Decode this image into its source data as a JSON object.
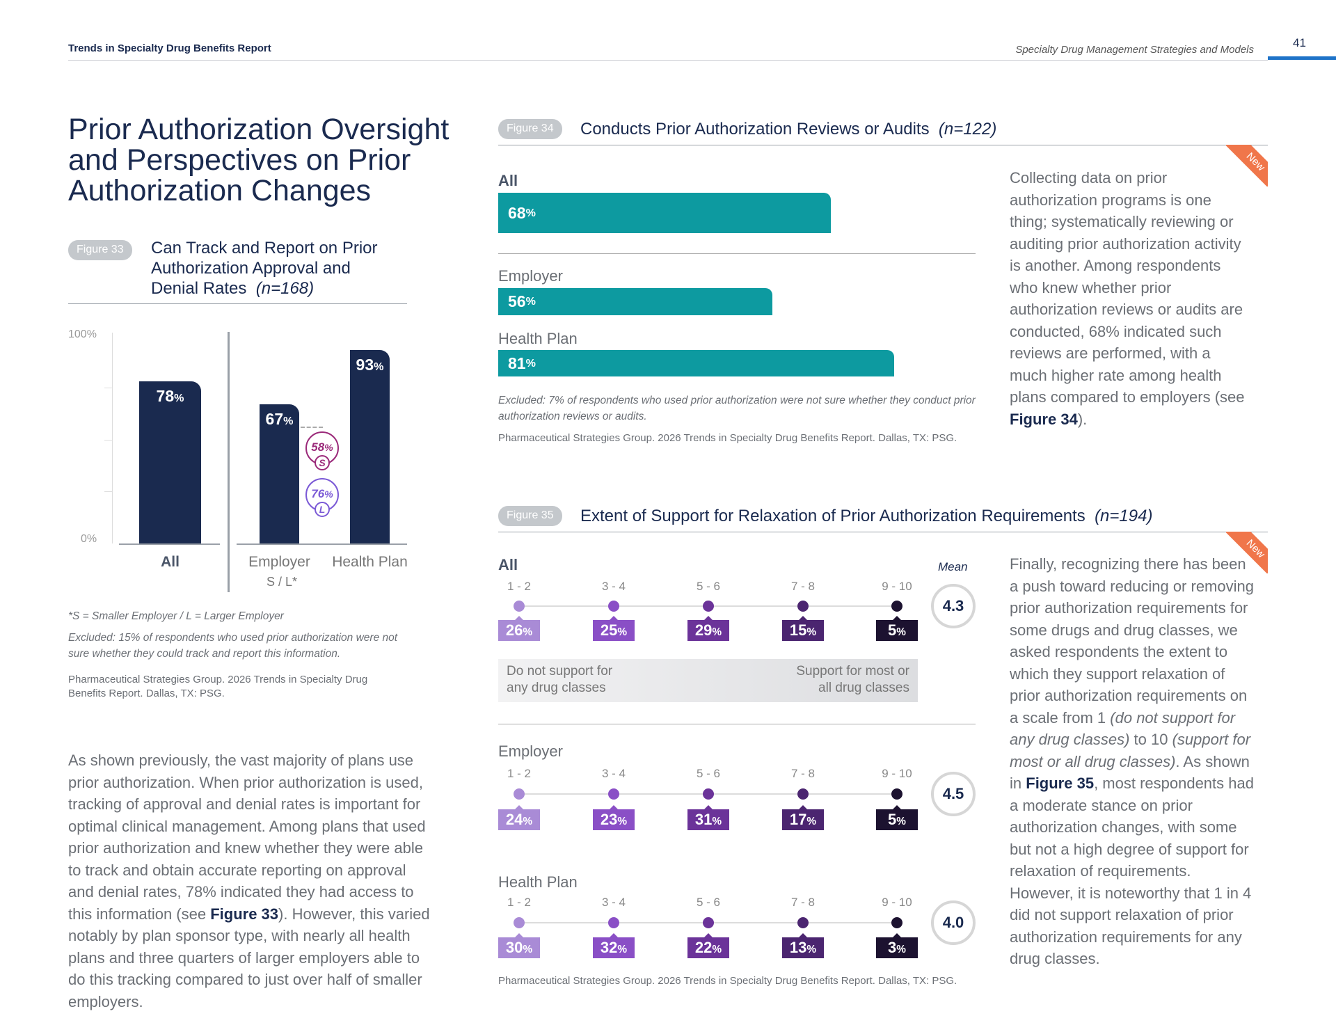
{
  "header": {
    "left": "Trends in Specialty Drug Benefits Report",
    "right": "Specialty Drug Management Strategies and Models",
    "page": "41"
  },
  "title": "Prior Authorization Oversight and Perspectives on Prior Authorization Changes",
  "fig33": {
    "badge": "Figure 33",
    "title": "Can Track and Report on Prior Authorization Approval and Denial Rates",
    "n": "(n=168)",
    "chart_data": {
      "type": "bar",
      "categories": [
        "All",
        "Employer",
        "Health Plan"
      ],
      "values": [
        78,
        67,
        93
      ],
      "ylim": [
        0,
        100
      ],
      "ytick_labels": [
        "100%",
        "0%"
      ],
      "employer_breakdown": [
        {
          "label": "S",
          "value": 58,
          "color": "#9b2a7a"
        },
        {
          "label": "L",
          "value": 76,
          "color": "#7b5ad6"
        }
      ]
    },
    "employer_sub": "S / L*",
    "footnote": "*S = Smaller Employer / L = Larger Employer",
    "excluded": "Excluded: 15% of respondents who used prior authorization were not sure whether they could track and report this information.",
    "source": "Pharmaceutical Strategies Group. 2026 Trends in Specialty Drug Benefits Report. Dallas, TX: PSG."
  },
  "body1": [
    "As shown previously, the vast majority of plans use prior authorization. When prior authorization is used, tracking of approval and denial rates is important for optimal clinical management. Among plans that used prior authorization and knew whether they were able to track and obtain accurate reporting on approval and denial rates, 78% indicated they had access to this information (see ",
    "Figure 33",
    "). However, this varied notably by plan sponsor type, with nearly all health plans and three quarters of larger employers able to do this tracking compared to just over half of smaller employers."
  ],
  "fig34": {
    "badge": "Figure 34",
    "title": "Conducts Prior Authorization Reviews or Audits",
    "n": "(n=122)",
    "new": "New",
    "chart_data": {
      "type": "bar",
      "orientation": "horizontal",
      "categories": [
        "All",
        "Employer",
        "Health Plan"
      ],
      "values": [
        68,
        56,
        81
      ],
      "xlim": [
        0,
        100
      ]
    },
    "excluded": "Excluded: 7% of respondents who used prior authorization were not sure whether they conduct prior authorization reviews or audits.",
    "source": "Pharmaceutical Strategies Group. 2026 Trends in Specialty Drug Benefits Report. Dallas, TX: PSG."
  },
  "body2": [
    "Collecting data on prior authorization programs is one thing; systematically reviewing or auditing prior authorization activity is another. Among respondents who knew whether prior authorization reviews or audits are conducted, 68% indicated such reviews are performed, with a much higher rate among health plans compared to employers (see ",
    "Figure 34",
    "). "
  ],
  "fig35": {
    "badge": "Figure 35",
    "title": "Extent of Support for Relaxation of Prior Authorization Requirements",
    "n": "(n=194)",
    "new": "New",
    "mean_label": "Mean",
    "scale_low": "Do not support for any drug classes",
    "scale_high": "Support for most or all drug classes",
    "chart_data": {
      "type": "bar",
      "categories": [
        "1 - 2",
        "3 - 4",
        "5 - 6",
        "7 - 8",
        "9 - 10"
      ],
      "colors": [
        "#a98bd6",
        "#8a4fc6",
        "#6b3399",
        "#4b2570",
        "#1c1230"
      ],
      "series": [
        {
          "name": "All",
          "values": [
            26,
            25,
            29,
            15,
            5
          ],
          "mean": "4.3"
        },
        {
          "name": "Employer",
          "values": [
            24,
            23,
            31,
            17,
            5
          ],
          "mean": "4.5"
        },
        {
          "name": "Health Plan",
          "values": [
            30,
            32,
            22,
            13,
            3
          ],
          "mean": "4.0"
        }
      ]
    },
    "source": "Pharmaceutical Strategies Group. 2026 Trends in Specialty Drug Benefits Report. Dallas, TX: PSG."
  },
  "body3": [
    "Finally, recognizing there has been a push toward reducing or removing prior authorization requirements for some drugs and drug classes, we asked respondents the extent to which they support relaxation of prior authorization requirements on a scale from 1 ",
    "(do not support for any drug classes)",
    " to 10 ",
    "(support for most or all drug classes)",
    ". As shown in ",
    "Figure 35",
    ", most respondents had a moderate stance on prior authorization changes, with some but not a high degree of support for relaxation of requirements. However, it is noteworthy that 1 in 4 did not support relaxation of prior authorization requirements for any drug classes."
  ]
}
